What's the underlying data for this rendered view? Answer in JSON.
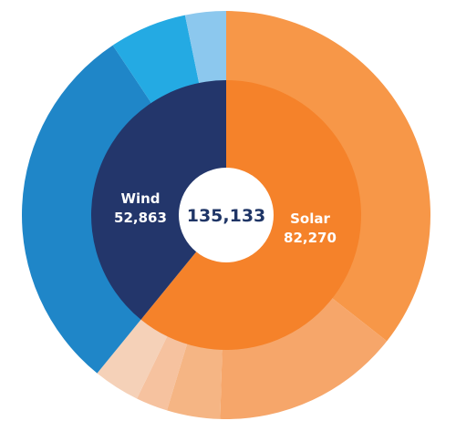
{
  "chart_data": {
    "type": "pie",
    "subtype": "nested-donut",
    "total": "135,133",
    "inner": [
      {
        "label": "Solar",
        "value_text": "82,270",
        "value": 82270,
        "color": "#f5822a"
      },
      {
        "label": "Wind",
        "value_text": "52,863",
        "value": 52863,
        "color": "#23366b"
      }
    ],
    "outer": [
      {
        "parent": "Solar",
        "value": 48100,
        "color": "#f79748"
      },
      {
        "parent": "Solar",
        "value": 20100,
        "color": "#f6a66a"
      },
      {
        "parent": "Solar",
        "value": 5700,
        "color": "#f5b584"
      },
      {
        "parent": "Solar",
        "value": 3400,
        "color": "#f6c29f"
      },
      {
        "parent": "Solar",
        "value": 4970,
        "color": "#f5d1b8"
      },
      {
        "parent": "Wind",
        "value": 40200,
        "color": "#1f86c8"
      },
      {
        "parent": "Wind",
        "value": 8300,
        "color": "#24aae3"
      },
      {
        "parent": "Wind",
        "value": 4363,
        "color": "#8cc8ee"
      }
    ]
  }
}
